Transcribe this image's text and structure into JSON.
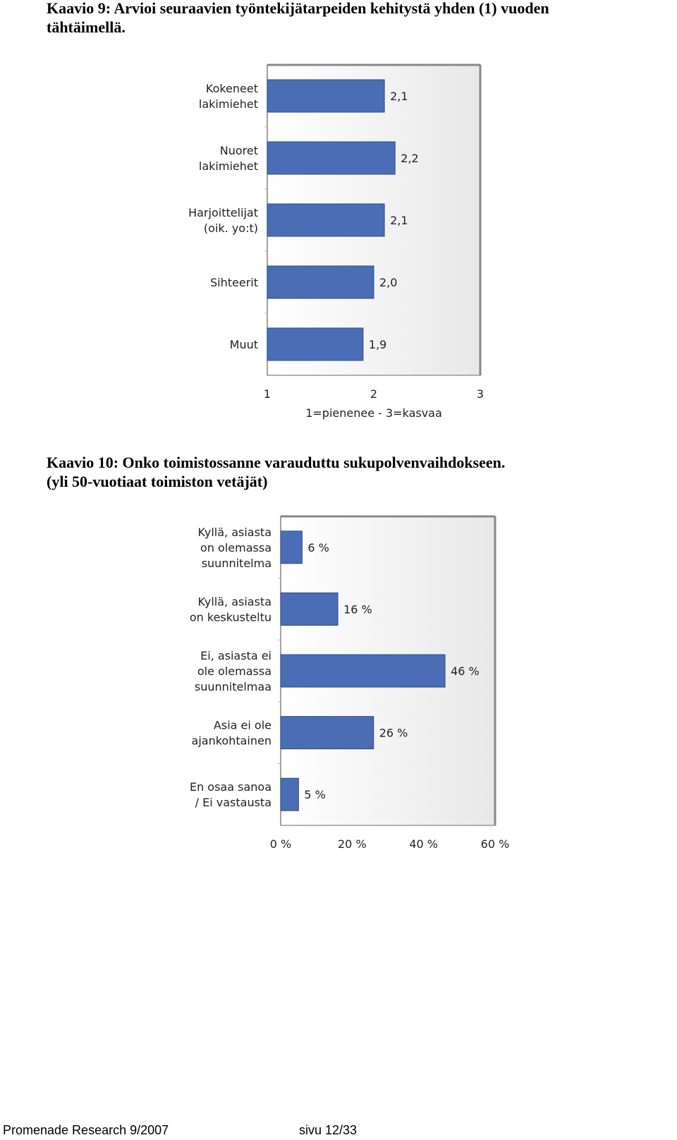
{
  "heading1": {
    "line1": "Kaavio 9: Arvioi seuraavien työntekijätarpeiden kehitystä yhden (1) vuoden",
    "line2": "tähtäimellä."
  },
  "heading2": {
    "line1": "Kaavio 10: Onko toimistossanne varauduttu sukupolvenvaihdokseen.",
    "line2": "(yli 50-vuotiaat toimiston vetäjät)"
  },
  "footer": {
    "left": "Promenade Research 9/2007",
    "right": "sivu 12/33"
  },
  "colors": {
    "bar": "#4a6db5",
    "bar_stroke": "#2f4a86",
    "plot_bg_start": "#ffffff",
    "plot_bg_end": "#e8e8e8",
    "axis": "#777777"
  },
  "chart_data": [
    {
      "type": "bar",
      "orientation": "horizontal",
      "categories": [
        [
          "Kokeneet",
          "lakimiehet"
        ],
        [
          "Nuoret",
          "lakimiehet"
        ],
        [
          "Harjoittelijat",
          "(oik. yo:t)"
        ],
        [
          "Sihteerit"
        ],
        [
          "Muut"
        ]
      ],
      "values": [
        2.1,
        2.2,
        2.1,
        2.0,
        1.9
      ],
      "value_labels": [
        "2,1",
        "2,2",
        "2,1",
        "2,0",
        "1,9"
      ],
      "xlim": [
        1,
        3
      ],
      "xticks": [
        1,
        2,
        3
      ],
      "xtick_labels": [
        "1",
        "2",
        "3"
      ],
      "xlabel": "1=pienenee - 3=kasvaa",
      "grid": false
    },
    {
      "type": "bar",
      "orientation": "horizontal",
      "categories": [
        [
          "Kyllä, asiasta",
          "on olemassa",
          "suunnitelma"
        ],
        [
          "Kyllä, asiasta",
          "on keskusteltu"
        ],
        [
          "Ei, asiasta ei",
          "ole olemassa",
          "suunnitelmaa"
        ],
        [
          "Asia ei ole",
          "ajankohtainen"
        ],
        [
          "En osaa sanoa",
          "/ Ei vastausta"
        ]
      ],
      "values": [
        6,
        16,
        46,
        26,
        5
      ],
      "value_labels": [
        "6 %",
        "16 %",
        "46 %",
        "26 %",
        "5 %"
      ],
      "xlim": [
        0,
        60
      ],
      "xticks": [
        0,
        20,
        40,
        60
      ],
      "xtick_labels": [
        "0 %",
        "20 %",
        "40 %",
        "60 %"
      ],
      "xlabel": "",
      "grid": false
    }
  ]
}
